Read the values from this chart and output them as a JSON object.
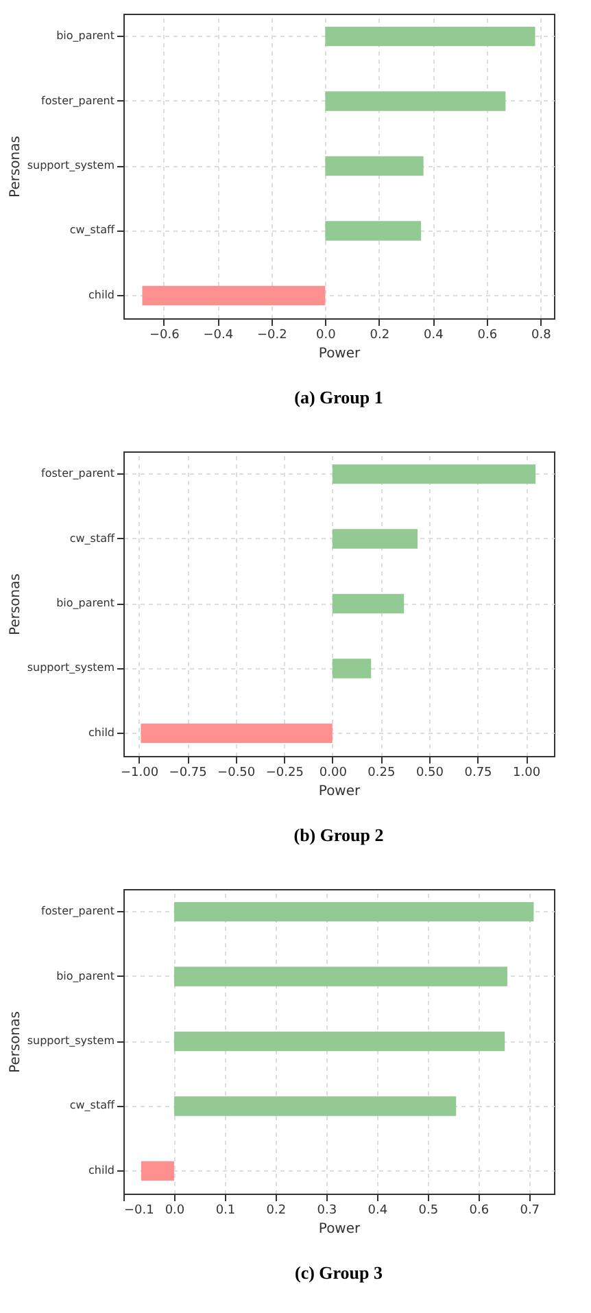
{
  "chart_data": [
    {
      "type": "bar",
      "orientation": "horizontal",
      "title": "(a) Group 1",
      "xlabel": "Power",
      "ylabel": "Personas",
      "grid": true,
      "categories": [
        "bio_parent",
        "foster_parent",
        "support_system",
        "cw_staff",
        "child"
      ],
      "values": [
        0.78,
        0.67,
        0.365,
        0.356,
        -0.68
      ],
      "colors": [
        "#93c993",
        "#93c993",
        "#93c993",
        "#93c993",
        "#ff9090"
      ],
      "xlim": [
        -0.75,
        0.85
      ],
      "xticks": [
        {
          "value": -0.6,
          "label": "−0.6"
        },
        {
          "value": -0.4,
          "label": "−0.4"
        },
        {
          "value": -0.2,
          "label": "−0.2"
        },
        {
          "value": 0,
          "label": "0.0"
        },
        {
          "value": 0.2,
          "label": "0.2"
        },
        {
          "value": 0.4,
          "label": "0.4"
        },
        {
          "value": 0.6,
          "label": "0.6"
        },
        {
          "value": 0.8,
          "label": "0.8"
        }
      ]
    },
    {
      "type": "bar",
      "orientation": "horizontal",
      "title": "(b) Group 2",
      "xlabel": "Power",
      "ylabel": "Personas",
      "grid": true,
      "categories": [
        "foster_parent",
        "cw_staff",
        "bio_parent",
        "support_system",
        "child"
      ],
      "values": [
        1.05,
        0.44,
        0.37,
        0.2,
        -0.99
      ],
      "colors": [
        "#93c993",
        "#93c993",
        "#93c993",
        "#93c993",
        "#ff9090"
      ],
      "xlim": [
        -1.08,
        1.145
      ],
      "xticks": [
        {
          "value": -1,
          "label": "−1.00"
        },
        {
          "value": -0.75,
          "label": "−0.75"
        },
        {
          "value": -0.5,
          "label": "−0.50"
        },
        {
          "value": -0.25,
          "label": "−0.25"
        },
        {
          "value": 0,
          "label": "0.00"
        },
        {
          "value": 0.25,
          "label": "0.25"
        },
        {
          "value": 0.5,
          "label": "0.50"
        },
        {
          "value": 0.75,
          "label": "0.75"
        },
        {
          "value": 1,
          "label": "1.00"
        }
      ]
    },
    {
      "type": "bar",
      "orientation": "horizontal",
      "title": "(c) Group 3",
      "xlabel": "Power",
      "ylabel": "Personas",
      "grid": true,
      "categories": [
        "foster_parent",
        "bio_parent",
        "support_system",
        "cw_staff",
        "child"
      ],
      "values": [
        0.709,
        0.657,
        0.652,
        0.556,
        -0.065
      ],
      "colors": [
        "#93c993",
        "#93c993",
        "#93c993",
        "#93c993",
        "#ff9090"
      ],
      "xlim": [
        -0.1,
        0.749
      ],
      "xticks": [
        {
          "value": -0.1,
          "label": "−0.1"
        },
        {
          "value": 0,
          "label": "0.0"
        },
        {
          "value": 0.1,
          "label": "0.1"
        },
        {
          "value": 0.2,
          "label": "0.2"
        },
        {
          "value": 0.3,
          "label": "0.3"
        },
        {
          "value": 0.4,
          "label": "0.4"
        },
        {
          "value": 0.5,
          "label": "0.5"
        },
        {
          "value": 0.6,
          "label": "0.6"
        },
        {
          "value": 0.7,
          "label": "0.7"
        }
      ]
    }
  ]
}
